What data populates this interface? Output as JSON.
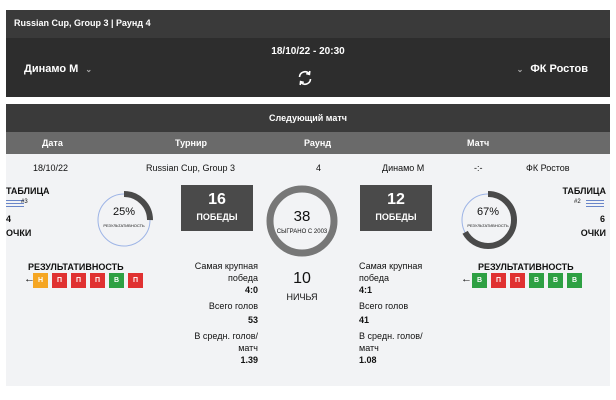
{
  "header": {
    "title": "Russian Cup, Group 3 | Раунд 4"
  },
  "match": {
    "datetime": "18/10/22 - 20:30",
    "home_team": "Динамо М",
    "away_team": "ФК Ростов",
    "refresh_icon": "refresh-icon"
  },
  "next": {
    "title": "Следующий матч",
    "columns": [
      "Дата",
      "Турнир",
      "Раунд",
      "Матч"
    ],
    "row": {
      "date": "18/10/22",
      "tournament": "Russian Cup, Group 3",
      "round": "4",
      "home": "Динамо М",
      "score": "-:-",
      "away": "ФК Ростов"
    }
  },
  "home": {
    "table_label": "ТАБЛИЦА",
    "rank": "#3",
    "points": "4",
    "points_label": "ОЧКИ",
    "perf_pct": "25%",
    "perf_small": "РЕЗУЛЬТАТИВНОСТЬ",
    "perf_value": 0.25,
    "perf_title": "РЕЗУЛЬТАТИВНОСТЬ",
    "form": [
      "Н",
      "П",
      "П",
      "П",
      "В",
      "П"
    ],
    "wins": "16",
    "wins_label": "ПОБЕДЫ",
    "biggest_label": "Самая крупная победа",
    "biggest": "4:0",
    "goals_label": "Всего голов",
    "goals": "53",
    "avg_label": "В средн. голов/матч",
    "avg": "1.39"
  },
  "middle": {
    "played": "38",
    "played_label": "СЫГРАНО С 2003",
    "draws": "10",
    "draws_label": "НИЧЬЯ"
  },
  "away": {
    "table_label": "ТАБЛИЦА",
    "rank": "#2",
    "points": "6",
    "points_label": "ОЧКИ",
    "perf_pct": "67%",
    "perf_small": "РЕЗУЛЬТАТИВНОСТЬ",
    "perf_value": 0.67,
    "perf_title": "РЕЗУЛЬТАТИВНОСТЬ",
    "form": [
      "В",
      "П",
      "П",
      "В",
      "В",
      "В"
    ],
    "wins": "12",
    "wins_label": "ПОБЕДЫ",
    "biggest_label": "Самая крупная победа",
    "biggest": "4:1",
    "goals_label": "Всего голов",
    "goals": "41",
    "avg_label": "В средн. голов/матч",
    "avg": "1.08"
  },
  "colors": {
    "win": "#2ea043",
    "loss": "#e03131",
    "draw": "#f5a623",
    "dark": "#4a4a4a"
  }
}
